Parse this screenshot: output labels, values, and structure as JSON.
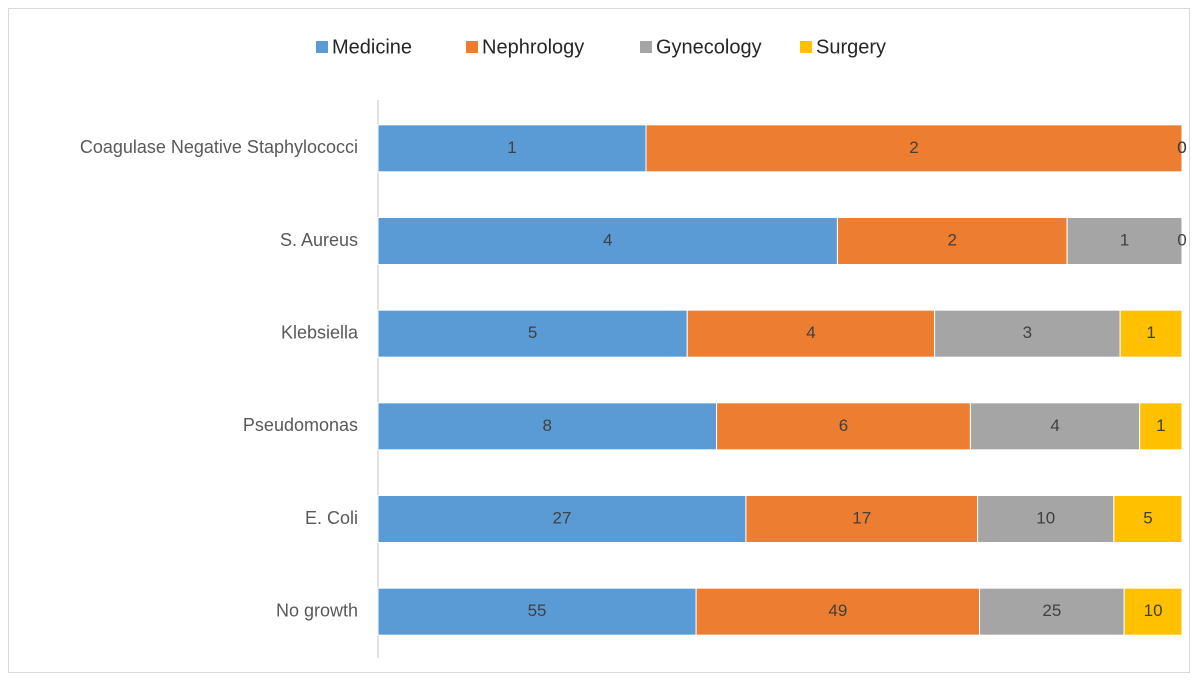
{
  "chart_data": {
    "type": "bar",
    "orientation": "horizontal",
    "stacking": "percent",
    "categories": [
      "Coagulase Negative Staphylococci",
      "S. Aureus",
      "Klebsiella",
      "Pseudomonas",
      "E. Coli",
      "No growth"
    ],
    "series": [
      {
        "name": "Medicine",
        "color": "#5b9bd5",
        "values": [
          1,
          4,
          5,
          8,
          27,
          55
        ]
      },
      {
        "name": "Nephrology",
        "color": "#ed7d31",
        "values": [
          2,
          2,
          4,
          6,
          17,
          49
        ]
      },
      {
        "name": "Gynecology",
        "color": "#a5a5a5",
        "values": [
          0,
          1,
          3,
          4,
          10,
          25
        ]
      },
      {
        "name": "Surgery",
        "color": "#ffc000",
        "values": [
          0,
          0,
          1,
          1,
          5,
          10
        ]
      }
    ],
    "legend": "top"
  }
}
